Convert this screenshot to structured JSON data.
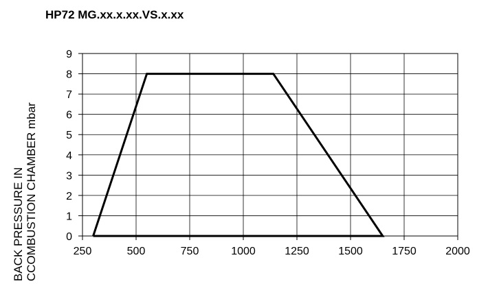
{
  "chart_data": {
    "type": "line",
    "title": "HP72 MG.xx.x.xx.VS.x.xx",
    "xlabel": "",
    "ylabel_lines": [
      "BACK PRESSURE IN",
      "CCOMBUSTION CHAMBER mbar"
    ],
    "xlim": [
      250,
      2000
    ],
    "ylim": [
      0,
      9
    ],
    "x_ticks": [
      250,
      500,
      750,
      1000,
      1250,
      1500,
      1750,
      2000
    ],
    "y_ticks": [
      0,
      1,
      2,
      3,
      4,
      5,
      6,
      7,
      8,
      9
    ],
    "grid": true,
    "legend": "none",
    "series": [
      {
        "x": [
          300,
          550,
          1140,
          1650,
          300
        ],
        "y": [
          0,
          8,
          8,
          0,
          0
        ],
        "color": "#000000"
      }
    ]
  }
}
